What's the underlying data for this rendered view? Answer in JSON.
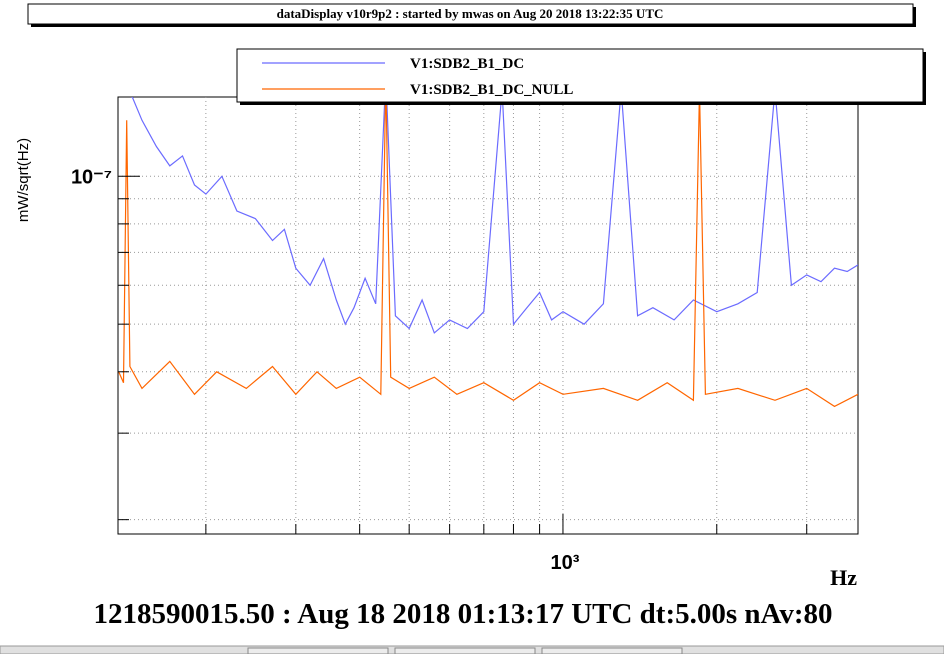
{
  "header": {
    "title": "dataDisplay v10r9p2 : started by mwas on Aug 20 2018 13:22:35 UTC"
  },
  "chart_data": {
    "type": "line",
    "x_label": "Hz",
    "y_label": "mW/sqrt(Hz)",
    "footer": "1218590015.50 : Aug 18 2018 01:13:17 UTC dt:5.00s nAv:80",
    "xscale": "log",
    "yscale": "log",
    "grid": true,
    "legend": "top",
    "xlim": [
      134.6,
      3780
    ],
    "ylim": [
      1.87e-08,
      1.45e-07
    ],
    "xticks": [
      {
        "value": 1000,
        "label": "10³"
      }
    ],
    "xminor": [
      200,
      300,
      400,
      500,
      600,
      700,
      800,
      900,
      2000,
      3000
    ],
    "yticks": [
      {
        "value": 1e-07,
        "label": "10⁻⁷"
      }
    ],
    "yminor": [
      2e-08,
      3e-08,
      4e-08,
      5e-08,
      6e-08,
      7e-08,
      8e-08,
      9e-08
    ],
    "series": [
      {
        "name": "V1:SDB2_B1_DC",
        "color": "#6b6bff",
        "x": [
          138,
          150,
          160,
          170,
          180,
          190,
          200,
          215,
          230,
          250,
          270,
          285,
          300,
          320,
          340,
          360,
          375,
          390,
          410,
          430,
          450,
          470,
          500,
          530,
          560,
          600,
          650,
          700,
          760,
          800,
          850,
          900,
          950,
          1000,
          1100,
          1200,
          1300,
          1400,
          1500,
          1650,
          1800,
          2000,
          2200,
          2400,
          2600,
          2800,
          3000,
          3200,
          3400,
          3600,
          3780
        ],
        "values": [
          1.6e-07,
          1.3e-07,
          1.15e-07,
          1.05e-07,
          1.1e-07,
          9.6e-08,
          9.2e-08,
          1e-07,
          8.5e-08,
          8.2e-08,
          7.4e-08,
          7.8e-08,
          6.5e-08,
          6e-08,
          6.8e-08,
          5.6e-08,
          5e-08,
          5.4e-08,
          6.2e-08,
          5.5e-08,
          1.6e-07,
          5.2e-08,
          4.9e-08,
          5.6e-08,
          4.8e-08,
          5.1e-08,
          4.9e-08,
          5.3e-08,
          1.5e-07,
          5e-08,
          5.4e-08,
          5.8e-08,
          5.1e-08,
          5.3e-08,
          5e-08,
          5.5e-08,
          1.5e-07,
          5.2e-08,
          5.4e-08,
          5.1e-08,
          5.6e-08,
          5.3e-08,
          5.5e-08,
          5.8e-08,
          1.5e-07,
          6e-08,
          6.3e-08,
          6.1e-08,
          6.5e-08,
          6.4e-08,
          6.6e-08
        ]
      },
      {
        "name": "V1:SDB2_B1_DC_NULL",
        "color": "#ff6600",
        "x": [
          135,
          138,
          140,
          142,
          150,
          170,
          190,
          210,
          240,
          270,
          300,
          330,
          360,
          400,
          440,
          450,
          460,
          500,
          560,
          620,
          700,
          800,
          900,
          1000,
          1200,
          1400,
          1600,
          1800,
          1850,
          1900,
          2200,
          2600,
          3000,
          3400,
          3780
        ],
        "values": [
          4e-08,
          3.8e-08,
          1.3e-07,
          4.1e-08,
          3.7e-08,
          4.2e-08,
          3.6e-08,
          4e-08,
          3.7e-08,
          4.1e-08,
          3.6e-08,
          4e-08,
          3.7e-08,
          3.9e-08,
          3.6e-08,
          1.6e-07,
          3.9e-08,
          3.7e-08,
          3.9e-08,
          3.6e-08,
          3.8e-08,
          3.5e-08,
          3.8e-08,
          3.6e-08,
          3.7e-08,
          3.5e-08,
          3.8e-08,
          3.5e-08,
          1.5e-07,
          3.6e-08,
          3.7e-08,
          3.5e-08,
          3.7e-08,
          3.4e-08,
          3.6e-08
        ]
      }
    ]
  }
}
